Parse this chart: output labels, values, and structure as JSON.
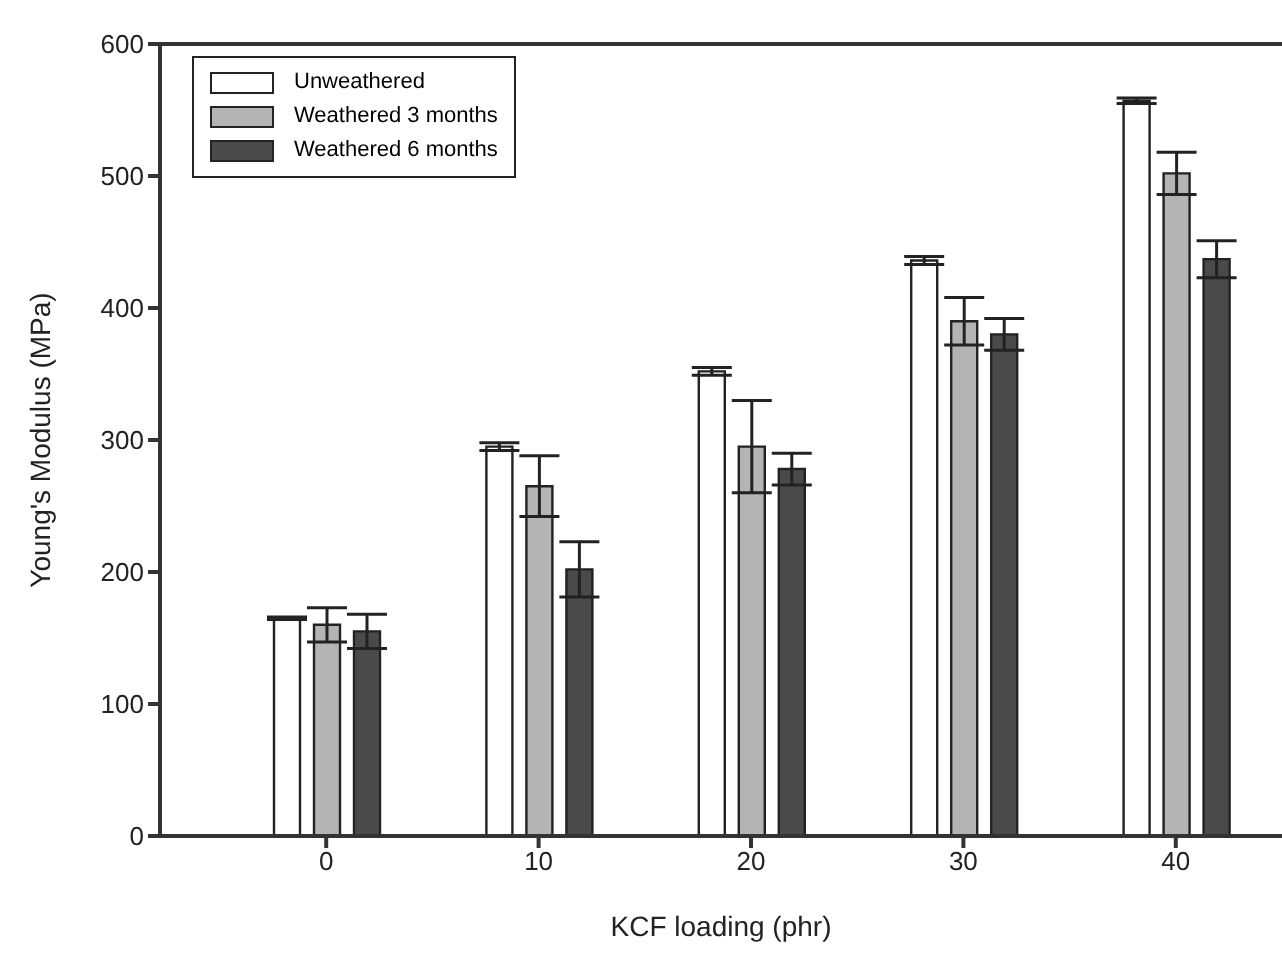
{
  "chart_data": {
    "type": "bar",
    "xlabel": "KCF loading (phr)",
    "ylabel": "Young's Modulus (MPa)",
    "categories": [
      "0",
      "10",
      "20",
      "30",
      "40"
    ],
    "series": [
      {
        "name": "Unweathered",
        "color": "#ffffff",
        "values": [
          165,
          295,
          352,
          436,
          557
        ],
        "errors": [
          1,
          3,
          3,
          3,
          2
        ]
      },
      {
        "name": "Weathered 3 months",
        "color": "#b4b4b4",
        "values": [
          160,
          265,
          295,
          390,
          502
        ],
        "errors": [
          13,
          23,
          35,
          18,
          16
        ]
      },
      {
        "name": "Weathered 6 months",
        "color": "#4a4a4a",
        "values": [
          155,
          202,
          278,
          380,
          437
        ],
        "errors": [
          13,
          21,
          12,
          12,
          14
        ]
      }
    ],
    "ylim": [
      0,
      600
    ],
    "yticks": [
      0,
      100,
      200,
      300,
      400,
      500,
      600
    ],
    "grid": false,
    "legend": "top left"
  }
}
